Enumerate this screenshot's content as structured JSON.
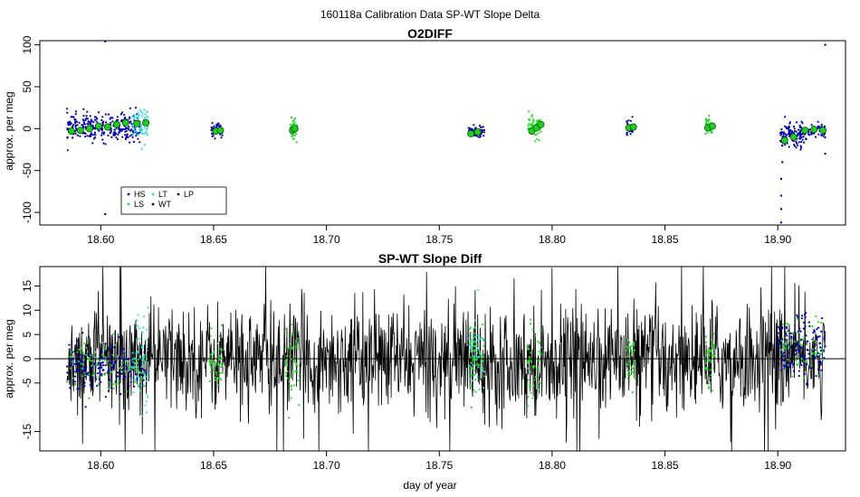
{
  "figure_title": "160118a   Calibration Data SP-WT Slope Delta",
  "xlabel": "day of year",
  "colors": {
    "HS": "#0000aa",
    "LS": "#22dd22",
    "LT": "#33dddd",
    "WT": "#000000",
    "LP": "#000000",
    "trace": "#000000",
    "mean_fill": "#22cc22",
    "mean_edge": "#005500"
  },
  "chart_data": [
    {
      "type": "scatter",
      "title": "O2DIFF",
      "xlabel": "",
      "ylabel": "approx. per meg",
      "xlim": [
        18.573,
        18.93
      ],
      "ylim": [
        -115,
        105
      ],
      "x_ticks": [
        18.6,
        18.65,
        18.7,
        18.75,
        18.8,
        18.85,
        18.9
      ],
      "x_tick_labels": [
        "18.60",
        "18.65",
        "18.70",
        "18.75",
        "18.80",
        "18.85",
        "18.90"
      ],
      "y_ticks": [
        -100,
        -50,
        0,
        50,
        100
      ],
      "y_tick_labels": [
        "-100",
        "-50",
        "0",
        "50",
        "100"
      ],
      "legend": {
        "position": "bottom-left",
        "entries": [
          {
            "key": "HS",
            "label": "HS"
          },
          {
            "key": "LS",
            "label": "LS"
          },
          {
            "key": "LT",
            "label": "LT"
          },
          {
            "key": "WT",
            "label": "WT"
          },
          {
            "key": "LP",
            "label": "LP"
          }
        ]
      },
      "clusters": [
        {
          "x0": 18.585,
          "x1": 18.618,
          "center": 2,
          "spread": 8,
          "series": "HS",
          "n": 300
        },
        {
          "x0": 18.614,
          "x1": 18.621,
          "center": 5,
          "spread": 10,
          "series": "LT",
          "n": 60
        },
        {
          "x0": 18.649,
          "x1": 18.654,
          "center": -2,
          "spread": 4,
          "series": "HS",
          "n": 50
        },
        {
          "x0": 18.684,
          "x1": 18.687,
          "center": -1,
          "spread": 6,
          "series": "LS",
          "n": 40
        },
        {
          "x0": 18.763,
          "x1": 18.77,
          "center": -4,
          "spread": 4,
          "series": "HS",
          "n": 70
        },
        {
          "x0": 18.789,
          "x1": 18.795,
          "center": 2,
          "spread": 6,
          "series": "LS",
          "n": 60
        },
        {
          "x0": 18.833,
          "x1": 18.836,
          "center": 2,
          "spread": 5,
          "series": "HS",
          "n": 40
        },
        {
          "x0": 18.868,
          "x1": 18.871,
          "center": 3,
          "spread": 5,
          "series": "LS",
          "n": 40
        },
        {
          "x0": 18.901,
          "x1": 18.913,
          "center": -8,
          "spread": 7,
          "series": "HS",
          "n": 130
        },
        {
          "x0": 18.913,
          "x1": 18.921,
          "center": -2,
          "spread": 4,
          "series": "HS",
          "n": 50
        }
      ],
      "outliers": [
        {
          "x": 18.602,
          "y": 104,
          "series": "HS"
        },
        {
          "x": 18.602,
          "y": -102,
          "series": "HS"
        },
        {
          "x": 18.9015,
          "y": -112,
          "series": "HS"
        },
        {
          "x": 18.9015,
          "y": -96,
          "series": "HS"
        },
        {
          "x": 18.9015,
          "y": -80,
          "series": "HS"
        },
        {
          "x": 18.9015,
          "y": -60,
          "series": "HS"
        },
        {
          "x": 18.902,
          "y": -40,
          "series": "HS"
        },
        {
          "x": 18.921,
          "y": 100,
          "series": "HS"
        },
        {
          "x": 18.921,
          "y": -30,
          "series": "HS"
        }
      ],
      "means": [
        {
          "x": 18.587,
          "y": -3
        },
        {
          "x": 18.591,
          "y": -2
        },
        {
          "x": 18.595,
          "y": 0
        },
        {
          "x": 18.599,
          "y": 3
        },
        {
          "x": 18.603,
          "y": 2
        },
        {
          "x": 18.607,
          "y": 5
        },
        {
          "x": 18.611,
          "y": 7
        },
        {
          "x": 18.616,
          "y": 6
        },
        {
          "x": 18.62,
          "y": 7
        },
        {
          "x": 18.651,
          "y": -3
        },
        {
          "x": 18.653,
          "y": -2
        },
        {
          "x": 18.685,
          "y": -2
        },
        {
          "x": 18.686,
          "y": 0
        },
        {
          "x": 18.764,
          "y": -6
        },
        {
          "x": 18.767,
          "y": -4
        },
        {
          "x": 18.791,
          "y": -3
        },
        {
          "x": 18.793,
          "y": 1
        },
        {
          "x": 18.795,
          "y": 5
        },
        {
          "x": 18.834,
          "y": 1
        },
        {
          "x": 18.836,
          "y": 2
        },
        {
          "x": 18.869,
          "y": 1
        },
        {
          "x": 18.871,
          "y": 3
        },
        {
          "x": 18.903,
          "y": -14
        },
        {
          "x": 18.907,
          "y": -10
        },
        {
          "x": 18.912,
          "y": -2
        },
        {
          "x": 18.916,
          "y": -1
        },
        {
          "x": 18.92,
          "y": -2
        }
      ]
    },
    {
      "type": "line",
      "title": "SP-WT Slope Diff",
      "xlabel": "day of year",
      "ylabel": "approx. per meg",
      "xlim": [
        18.573,
        18.93
      ],
      "ylim": [
        -19,
        19
      ],
      "x_ticks": [
        18.6,
        18.65,
        18.7,
        18.75,
        18.8,
        18.85,
        18.9
      ],
      "x_tick_labels": [
        "18.60",
        "18.65",
        "18.70",
        "18.75",
        "18.80",
        "18.85",
        "18.90"
      ],
      "y_ticks": [
        -15,
        -5,
        0,
        5,
        10,
        15
      ],
      "y_tick_labels": [
        "-15",
        "-5",
        "0",
        "5",
        "10",
        "15"
      ],
      "reference_line": 0,
      "trace": {
        "x0": 18.585,
        "x1": 18.921,
        "n": 1500,
        "spread": 5.5,
        "series": "WT"
      },
      "clusters": [
        {
          "x0": 18.585,
          "x1": 18.62,
          "center": -1.5,
          "spread": 2.5,
          "series": "HS",
          "n": 200
        },
        {
          "x0": 18.585,
          "x1": 18.62,
          "center": -1.5,
          "spread": 2.5,
          "series": "LS",
          "n": 100
        },
        {
          "x0": 18.614,
          "x1": 18.621,
          "center": 0,
          "spread": 5,
          "series": "LT",
          "n": 60
        },
        {
          "x0": 18.648,
          "x1": 18.654,
          "center": -1,
          "spread": 3,
          "series": "LS",
          "n": 50
        },
        {
          "x0": 18.682,
          "x1": 18.688,
          "center": -1,
          "spread": 4,
          "series": "LS",
          "n": 50
        },
        {
          "x0": 18.763,
          "x1": 18.77,
          "center": 0,
          "spread": 4,
          "series": "LT",
          "n": 50
        },
        {
          "x0": 18.763,
          "x1": 18.77,
          "center": 0,
          "spread": 4,
          "series": "LS",
          "n": 50
        },
        {
          "x0": 18.789,
          "x1": 18.795,
          "center": -1,
          "spread": 4,
          "series": "LS",
          "n": 50
        },
        {
          "x0": 18.833,
          "x1": 18.837,
          "center": 0,
          "spread": 3,
          "series": "LS",
          "n": 40
        },
        {
          "x0": 18.868,
          "x1": 18.872,
          "center": 0,
          "spread": 3,
          "series": "LS",
          "n": 40
        },
        {
          "x0": 18.9,
          "x1": 18.921,
          "center": 2,
          "spread": 3,
          "series": "HS",
          "n": 170
        },
        {
          "x0": 18.9,
          "x1": 18.921,
          "center": 2,
          "spread": 3,
          "series": "LS",
          "n": 60
        }
      ]
    }
  ]
}
